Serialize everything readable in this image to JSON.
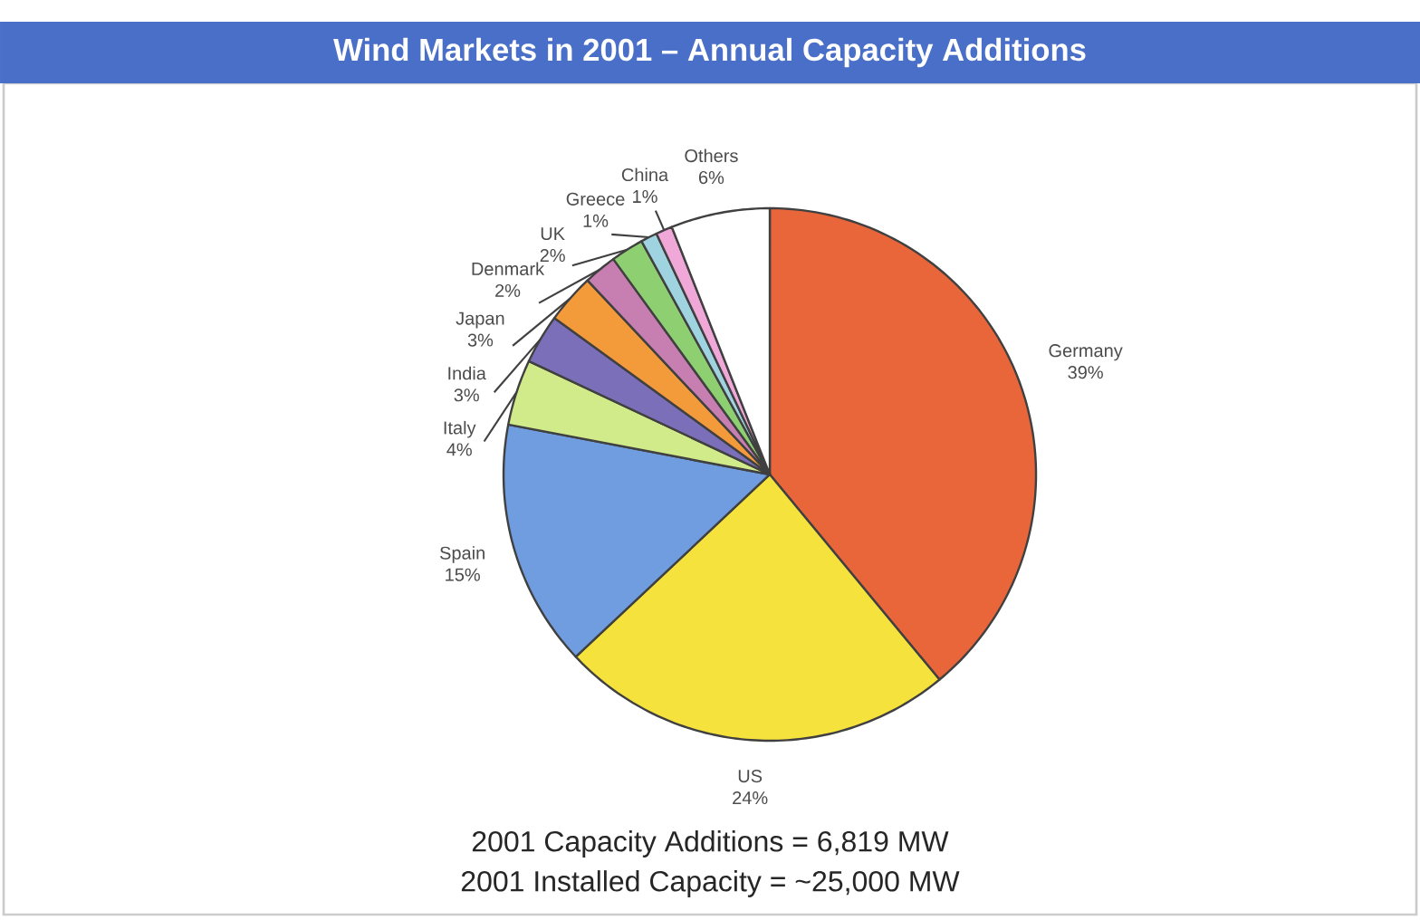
{
  "chart_data": {
    "type": "pie",
    "title": "Wind Markets in 2001 – Annual Capacity Additions",
    "categories": [
      "Germany",
      "US",
      "Spain",
      "Italy",
      "India",
      "Japan",
      "Denmark",
      "UK",
      "Greece",
      "China",
      "Others"
    ],
    "values": [
      39,
      24,
      15,
      4,
      3,
      3,
      2,
      2,
      1,
      1,
      6
    ],
    "value_labels": [
      "39%",
      "24%",
      "15%",
      "4%",
      "3%",
      "3%",
      "2%",
      "2%",
      "1%",
      "1%",
      "6%"
    ],
    "colors": [
      "#e8663a",
      "#f5e23c",
      "#6f9de0",
      "#d2eb8a",
      "#7a6fb8",
      "#f39a3a",
      "#c77fb2",
      "#8ecf72",
      "#9fd3e0",
      "#f0a8d8",
      "#ffffff"
    ],
    "annotations": [
      "2001 Capacity Additions = 6,819 MW",
      "2001 Installed Capacity = ~25,000 MW"
    ]
  }
}
